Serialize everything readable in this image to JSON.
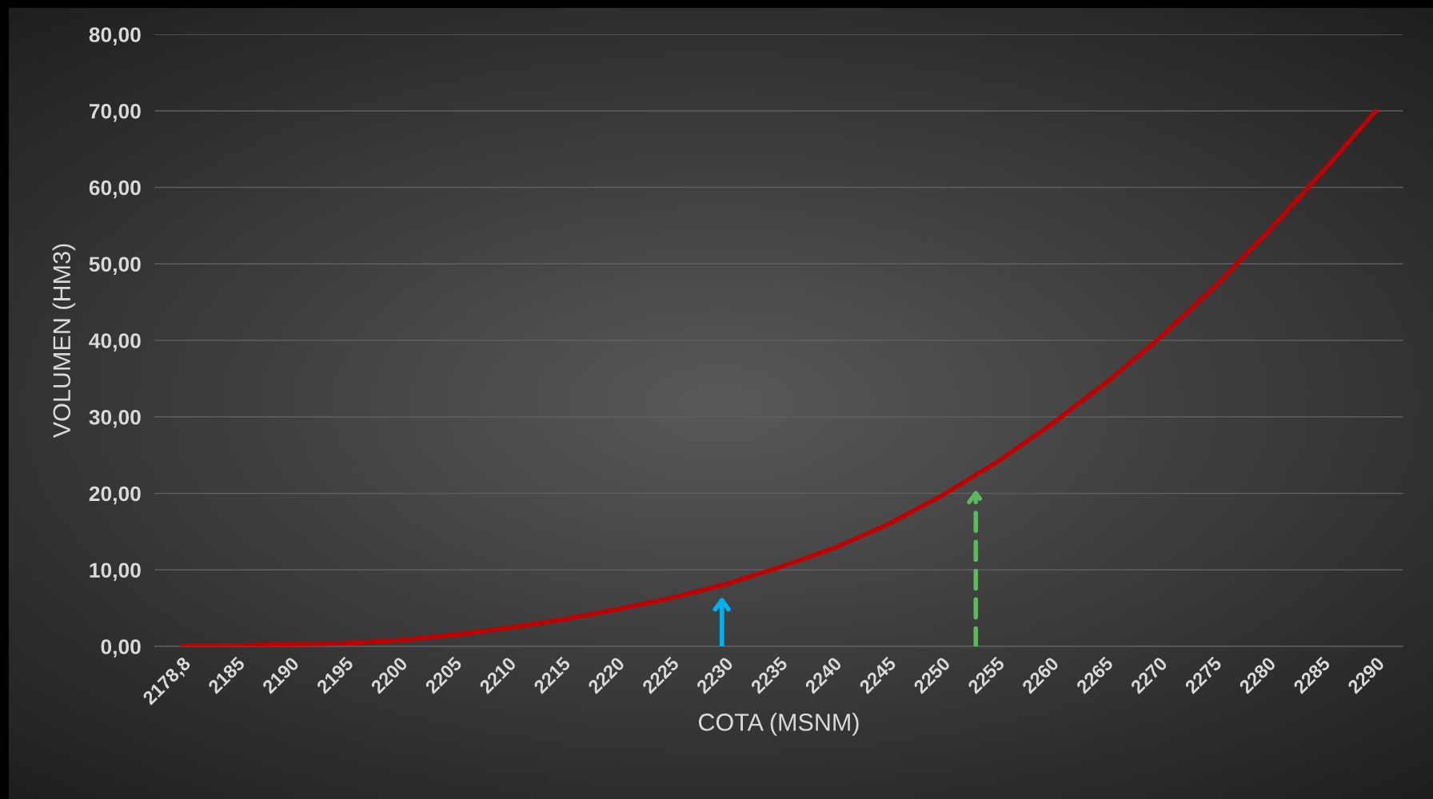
{
  "chart_data": {
    "type": "line",
    "xlabel": "COTA (MSNM)",
    "ylabel": "VOLUMEN (HM3)",
    "categories": [
      "2178,8",
      "2185",
      "2190",
      "2195",
      "2200",
      "2205",
      "2210",
      "2215",
      "2220",
      "2225",
      "2230",
      "2235",
      "2240",
      "2245",
      "2250",
      "2255",
      "2260",
      "2265",
      "2270",
      "2275",
      "2280",
      "2285",
      "2290"
    ],
    "series": [
      {
        "color": "#c00000",
        "values": [
          0,
          0.1,
          0.3,
          0.4,
          0.8,
          1.5,
          2.4,
          3.5,
          4.8,
          6.3,
          8.1,
          10.3,
          12.8,
          15.9,
          19.7,
          24.0,
          28.9,
          34.3,
          40.2,
          46.8,
          54.1,
          61.9,
          70.0
        ]
      }
    ],
    "ylim": [
      0,
      80
    ],
    "yticks": [
      {
        "value": 0,
        "label": "0,00"
      },
      {
        "value": 10,
        "label": "10,00"
      },
      {
        "value": 20,
        "label": "20,00"
      },
      {
        "value": 30,
        "label": "30,00"
      },
      {
        "value": 40,
        "label": "40,00"
      },
      {
        "value": 50,
        "label": "50,00"
      },
      {
        "value": 60,
        "label": "60,00"
      },
      {
        "value": 70,
        "label": "70,00"
      },
      {
        "value": 80,
        "label": "80,00"
      }
    ],
    "grid": "y",
    "marker": "none",
    "line_style": "solid"
  }
}
